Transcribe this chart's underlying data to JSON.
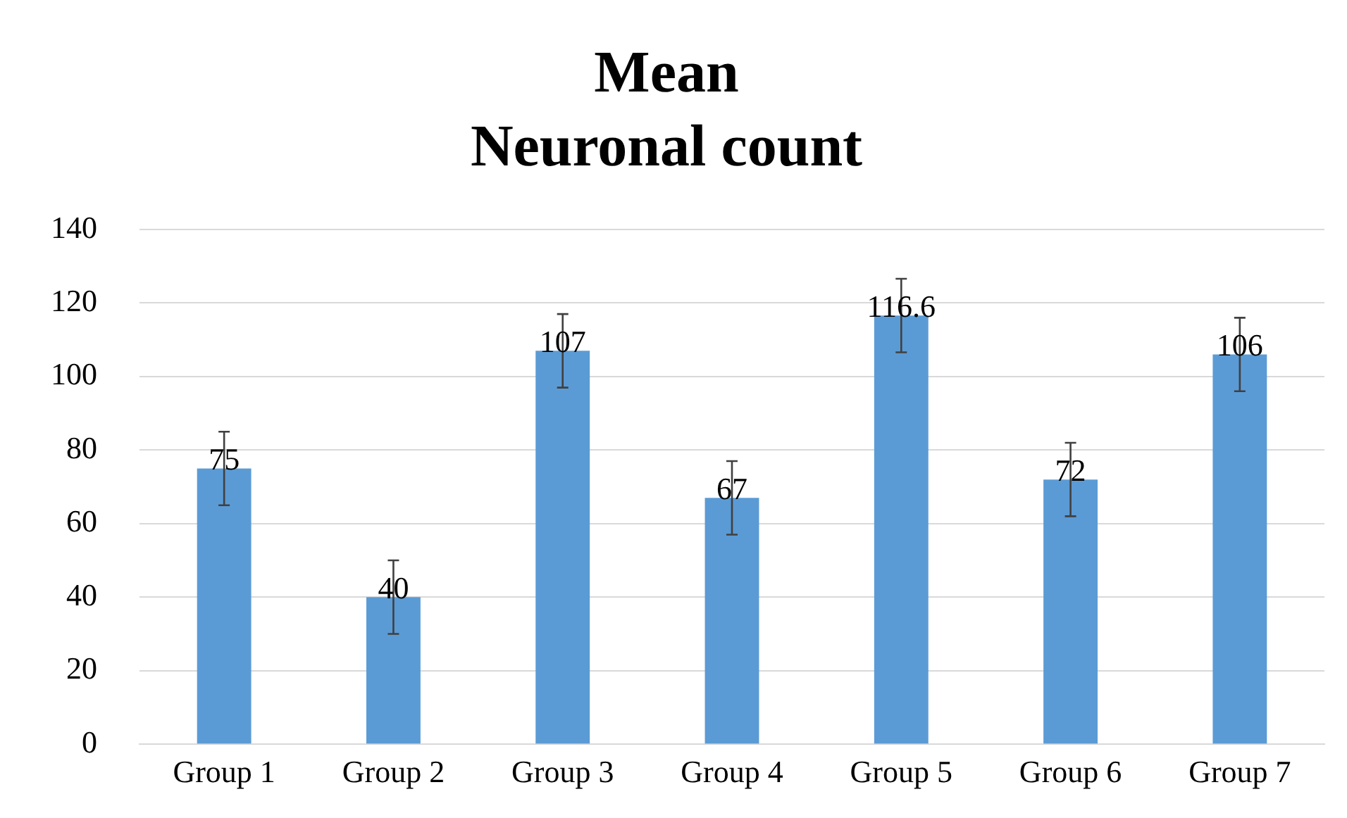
{
  "chart_data": {
    "type": "bar",
    "title": "Mean\nNeuronal count",
    "categories": [
      "Group 1",
      "Group 2",
      "Group 3",
      "Group 4",
      "Group 5",
      "Group 6",
      "Group 7"
    ],
    "values": [
      75,
      40,
      107,
      67,
      116.6,
      72,
      106
    ],
    "errors": [
      10,
      10,
      10,
      10,
      10,
      10,
      10
    ],
    "color": "#5b9bd5",
    "ylim": [
      0,
      140
    ],
    "yticks": [
      0,
      20,
      40,
      60,
      80,
      100,
      120,
      140
    ],
    "grid": "y",
    "data_labels": true,
    "legend": false
  }
}
